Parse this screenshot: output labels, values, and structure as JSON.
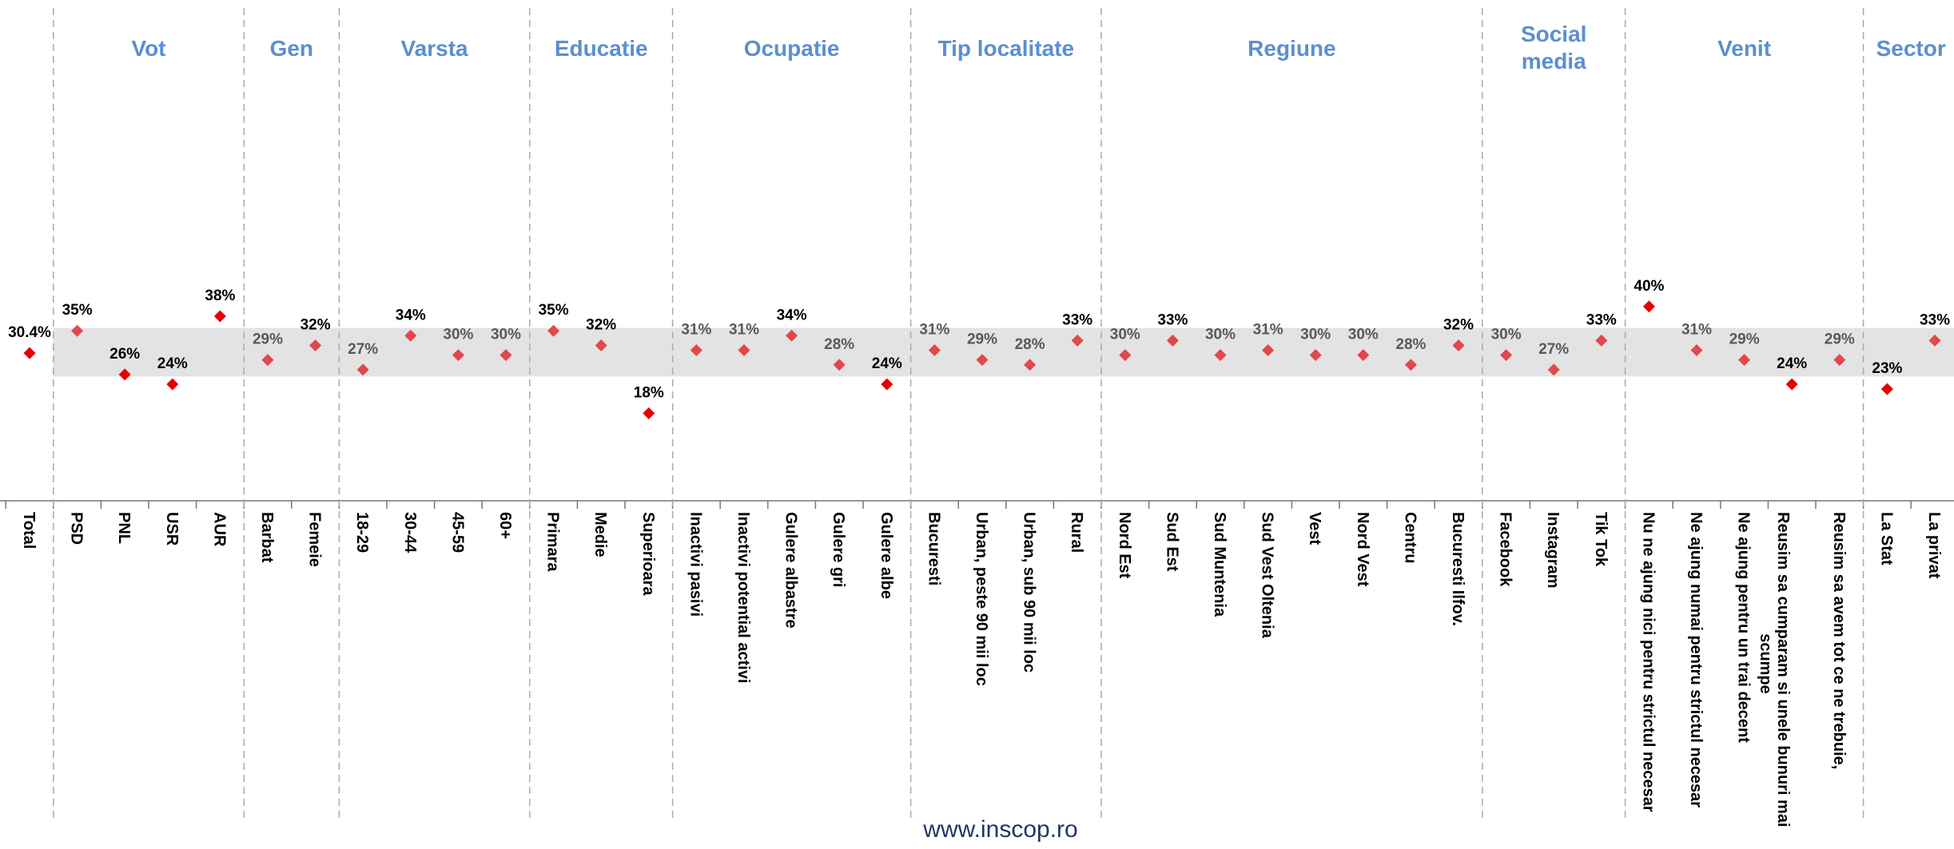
{
  "chart_data": {
    "type": "dot",
    "ylim": [
      0,
      100
    ],
    "reference_band": [
      25.6,
      35.6
    ],
    "footer": "www.inscop.ro",
    "groups": [
      {
        "categories": [
          "Total"
        ],
        "values": [
          30.4
        ],
        "value_labels": [
          "30.4%"
        ],
        "colors": [
          "#e60000"
        ],
        "label_colors": [
          "#000000"
        ]
      },
      {
        "name": "Vot",
        "categories": [
          "PSD",
          "PNL",
          "USR",
          "AUR"
        ],
        "values": [
          35,
          26,
          24,
          38
        ],
        "value_labels": [
          "35%",
          "26%",
          "24%",
          "38%"
        ],
        "colors": [
          "#e2474b",
          "#e60000",
          "#e60000",
          "#e60000"
        ],
        "label_colors": [
          "#000000",
          "#000000",
          "#000000",
          "#000000"
        ]
      },
      {
        "name": "Gen",
        "categories": [
          "Barbat",
          "Femeie"
        ],
        "values": [
          29,
          32
        ],
        "value_labels": [
          "29%",
          "32%"
        ],
        "colors": [
          "#e2474b",
          "#e2474b"
        ],
        "label_colors": [
          "#595959",
          "#000000"
        ]
      },
      {
        "name": "Varsta",
        "categories": [
          "18-29",
          "30-44",
          "45-59",
          "60+"
        ],
        "values": [
          27,
          34,
          30,
          30
        ],
        "value_labels": [
          "27%",
          "34%",
          "30%",
          "30%"
        ],
        "colors": [
          "#e2474b",
          "#e2474b",
          "#e2474b",
          "#e2474b"
        ],
        "label_colors": [
          "#595959",
          "#000000",
          "#595959",
          "#595959"
        ]
      },
      {
        "name": "Educatie",
        "categories": [
          "Primara",
          "Medie",
          "Superioara"
        ],
        "values": [
          35,
          32,
          18
        ],
        "value_labels": [
          "35%",
          "32%",
          "18%"
        ],
        "colors": [
          "#e2474b",
          "#e2474b",
          "#e60000"
        ],
        "label_colors": [
          "#000000",
          "#000000",
          "#000000"
        ]
      },
      {
        "name": "Ocupatie",
        "categories": [
          "Inactivi pasivi",
          "Inactivi potential activi",
          "Gulere albastre",
          "Gulere gri",
          "Gulere albe"
        ],
        "values": [
          31,
          31,
          34,
          28,
          24
        ],
        "value_labels": [
          "31%",
          "31%",
          "34%",
          "28%",
          "24%"
        ],
        "colors": [
          "#e2474b",
          "#e2474b",
          "#e2474b",
          "#e2474b",
          "#e60000"
        ],
        "label_colors": [
          "#595959",
          "#595959",
          "#000000",
          "#595959",
          "#000000"
        ]
      },
      {
        "name": "Tip localitate",
        "categories": [
          "Bucuresti",
          "Urban, peste 90 mii loc",
          "Urban, sub 90 mii loc",
          "Rural"
        ],
        "values": [
          31,
          29,
          28,
          33
        ],
        "value_labels": [
          "31%",
          "29%",
          "28%",
          "33%"
        ],
        "colors": [
          "#e2474b",
          "#e2474b",
          "#e2474b",
          "#e2474b"
        ],
        "label_colors": [
          "#595959",
          "#595959",
          "#595959",
          "#000000"
        ]
      },
      {
        "name": "Regiune",
        "categories": [
          "Nord Est",
          "Sud Est",
          "Sud Muntenia",
          "Sud Vest Oltenia",
          "Vest",
          "Nord Vest",
          "Centru",
          "Bucuresti Ilfov."
        ],
        "values": [
          30,
          33,
          30,
          31,
          30,
          30,
          28,
          32
        ],
        "value_labels": [
          "30%",
          "33%",
          "30%",
          "31%",
          "30%",
          "30%",
          "28%",
          "32%"
        ],
        "colors": [
          "#e2474b",
          "#e2474b",
          "#e2474b",
          "#e2474b",
          "#e2474b",
          "#e2474b",
          "#e2474b",
          "#e2474b"
        ],
        "label_colors": [
          "#595959",
          "#000000",
          "#595959",
          "#595959",
          "#595959",
          "#595959",
          "#595959",
          "#000000"
        ]
      },
      {
        "name": "Social media",
        "categories": [
          "Facebook",
          "Instagram",
          "Tik Tok"
        ],
        "values": [
          30,
          27,
          33
        ],
        "value_labels": [
          "30%",
          "27%",
          "33%"
        ],
        "colors": [
          "#e2474b",
          "#e2474b",
          "#e2474b"
        ],
        "label_colors": [
          "#595959",
          "#595959",
          "#000000"
        ]
      },
      {
        "name": "Venit",
        "categories": [
          "Nu ne ajung nici pentru strictul necesar",
          "Ne ajung numai pentru strictul necesar",
          "Ne ajung pentru un trai decent",
          "Reusim sa cumparam si unele bunuri mai scumpe",
          "Reusim sa avem tot ce ne trebuie,"
        ],
        "values": [
          40,
          31,
          29,
          24,
          29
        ],
        "value_labels": [
          "40%",
          "31%",
          "29%",
          "24%",
          "29%"
        ],
        "colors": [
          "#e60000",
          "#e2474b",
          "#e2474b",
          "#e60000",
          "#e2474b"
        ],
        "label_colors": [
          "#000000",
          "#595959",
          "#595959",
          "#000000",
          "#595959"
        ]
      },
      {
        "name": "Sector",
        "categories": [
          "La Stat",
          "La privat"
        ],
        "values": [
          23,
          33
        ],
        "value_labels": [
          "23%",
          "33%"
        ],
        "colors": [
          "#e60000",
          "#e2474b"
        ],
        "label_colors": [
          "#000000",
          "#000000"
        ]
      }
    ]
  }
}
